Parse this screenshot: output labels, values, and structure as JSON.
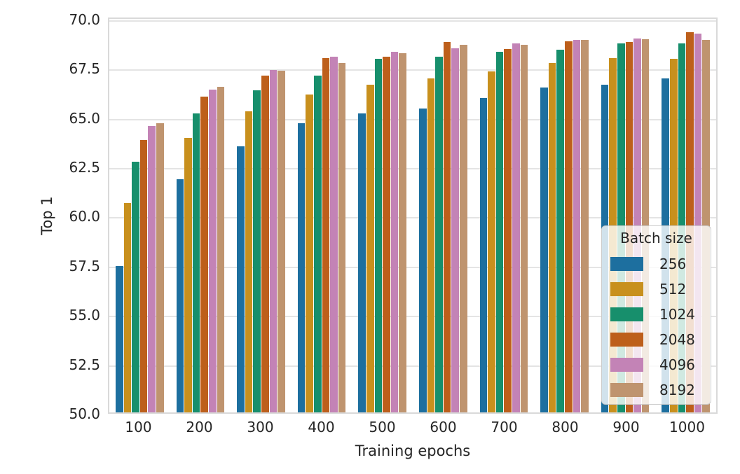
{
  "chart_data": {
    "type": "bar",
    "title": "",
    "xlabel": "Training epochs",
    "ylabel": "Top 1",
    "legend_title": "Batch size",
    "legend_position": "lower right",
    "grid": true,
    "ylim": [
      50,
      70.1
    ],
    "yticks": [
      50.0,
      52.5,
      55.0,
      57.5,
      60.0,
      62.5,
      65.0,
      67.5,
      70.0
    ],
    "categories": [
      "100",
      "200",
      "300",
      "400",
      "500",
      "600",
      "700",
      "800",
      "900",
      "1000"
    ],
    "series": [
      {
        "name": "256",
        "color": "#1d6f9f",
        "values": [
          57.5,
          61.9,
          63.55,
          64.75,
          65.25,
          65.5,
          66.0,
          66.55,
          66.7,
          67.0
        ]
      },
      {
        "name": "512",
        "color": "#c8901d",
        "values": [
          60.7,
          64.0,
          65.35,
          66.2,
          66.7,
          67.0,
          67.35,
          67.8,
          68.05,
          68.0
        ]
      },
      {
        "name": "1024",
        "color": "#178f6c",
        "values": [
          62.8,
          65.25,
          66.4,
          67.15,
          68.0,
          68.1,
          68.35,
          68.45,
          68.8,
          68.8
        ]
      },
      {
        "name": "2048",
        "color": "#bd5f1b",
        "values": [
          63.9,
          66.1,
          67.15,
          68.05,
          68.1,
          68.85,
          68.5,
          68.9,
          68.85,
          69.35
        ]
      },
      {
        "name": "4096",
        "color": "#c383b6",
        "values": [
          64.6,
          66.45,
          67.45,
          68.1,
          68.35,
          68.55,
          68.8,
          68.95,
          69.05,
          69.3
        ]
      },
      {
        "name": "8192",
        "color": "#bf946f",
        "values": [
          64.75,
          66.6,
          67.4,
          67.8,
          68.3,
          68.7,
          68.7,
          68.95,
          69.0,
          68.95
        ]
      }
    ]
  },
  "colors": {
    "grid": "#e4e4e4",
    "spine": "#d9d9d9",
    "text": "#262626",
    "legend_border": "#cccccc"
  }
}
